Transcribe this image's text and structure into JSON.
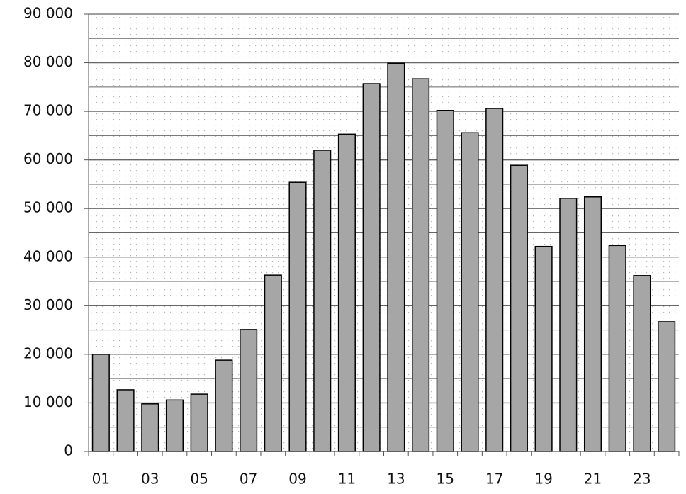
{
  "chart_data": {
    "type": "bar",
    "categories": [
      "01",
      null,
      "03",
      null,
      "05",
      null,
      "07",
      null,
      "09",
      null,
      "11",
      null,
      "13",
      null,
      "15",
      null,
      "17",
      null,
      "19",
      null,
      "21",
      null,
      "23",
      null
    ],
    "values": [
      20000,
      12700,
      9800,
      10600,
      11800,
      18800,
      25100,
      36300,
      55400,
      62000,
      65300,
      75700,
      79900,
      76700,
      70200,
      65600,
      70600,
      58900,
      42200,
      52100,
      52400,
      42400,
      36200,
      26700
    ],
    "color": "#a6a6a6",
    "ylim": [
      0,
      90000
    ],
    "yticks": [
      0,
      {
        "value": 10000,
        "label": "10 000"
      },
      {
        "value": 20000,
        "label": "20 000"
      },
      {
        "value": 30000,
        "label": "30 000"
      },
      {
        "value": 40000,
        "label": "40 000"
      },
      {
        "value": 50000,
        "label": "50 000"
      },
      {
        "value": 60000,
        "label": "60 000"
      },
      {
        "value": 70000,
        "label": "70 000"
      },
      {
        "value": 80000,
        "label": "80 000"
      },
      {
        "value": 90000,
        "label": "90 000"
      }
    ],
    "grid": true
  }
}
